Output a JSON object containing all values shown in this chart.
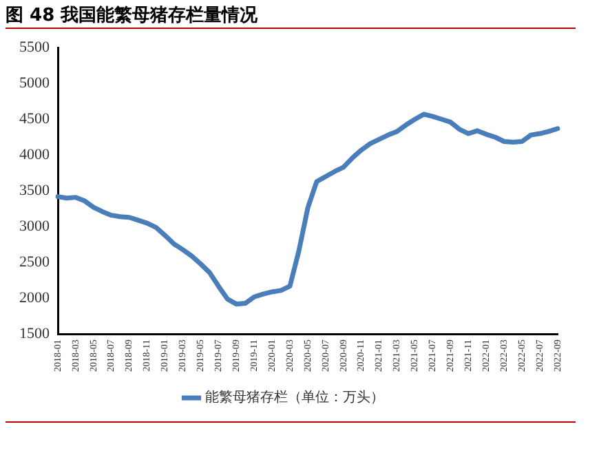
{
  "chart_data": {
    "type": "line",
    "title": "图 48 我国能繁母猪存栏量情况",
    "categories": [
      "2018-01",
      null,
      "2018-03",
      null,
      "2018-05",
      null,
      "2018-07",
      null,
      "2018-09",
      null,
      "2018-11",
      null,
      "2019-01",
      null,
      "2019-03",
      null,
      "2019-05",
      null,
      "2019-07",
      null,
      "2019-09",
      null,
      "2019-11",
      null,
      "2020-01",
      null,
      "2020-03",
      null,
      "2020-05",
      null,
      "2020-07",
      null,
      "2020-09",
      null,
      "2020-11",
      null,
      "2021-01",
      null,
      "2021-03",
      null,
      "2021-05",
      null,
      "2021-07",
      null,
      "2021-09",
      null,
      "2021-11",
      null,
      "2022-01",
      null,
      "2022-03",
      null,
      "2022-05",
      null,
      "2022-07",
      null,
      "2022-09"
    ],
    "series": [
      {
        "name": "能繁母猪存栏（单位：万头）",
        "color": "#4a7ebb",
        "values": [
          3420,
          3400,
          3410,
          3360,
          3270,
          3210,
          3160,
          3140,
          3130,
          3090,
          3050,
          2990,
          2880,
          2760,
          2680,
          2590,
          2480,
          2360,
          2170,
          1990,
          1920,
          1930,
          2020,
          2060,
          2090,
          2110,
          2170,
          2660,
          3260,
          3630,
          3700,
          3770,
          3830,
          3960,
          4070,
          4160,
          4220,
          4280,
          4330,
          4420,
          4500,
          4570,
          4540,
          4500,
          4460,
          4360,
          4300,
          4340,
          4290,
          4250,
          4190,
          4180,
          4190,
          4280,
          4300,
          4330,
          4370
        ]
      }
    ],
    "ylim": [
      1500,
      5500
    ],
    "yticks": [
      1500,
      2000,
      2500,
      3000,
      3500,
      4000,
      4500,
      5000,
      5500
    ],
    "grid": false,
    "legend": "bottom",
    "marker": "none",
    "line_style": "solid"
  }
}
